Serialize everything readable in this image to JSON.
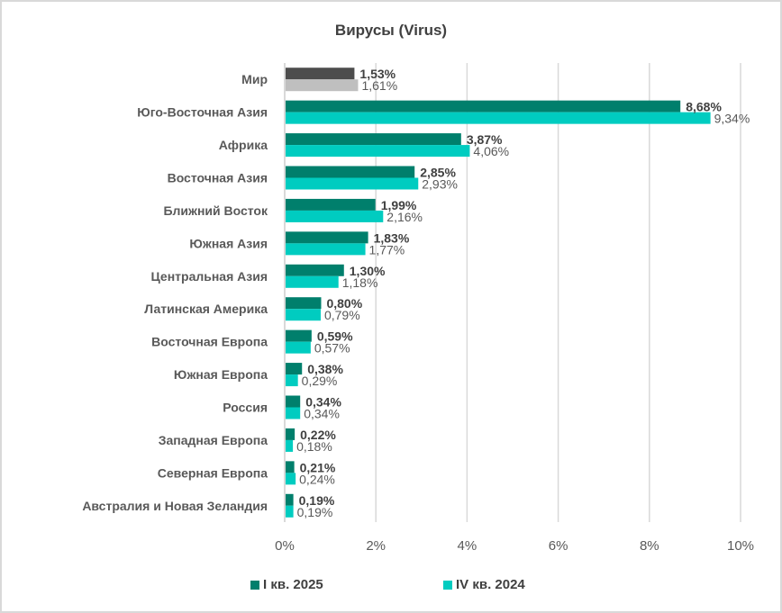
{
  "chart_data": {
    "type": "bar",
    "orientation": "horizontal",
    "title": "Вирусы (Virus)",
    "xlabel": "",
    "ylabel": "",
    "xlim": [
      0,
      10
    ],
    "x_ticks": [
      "0%",
      "2%",
      "4%",
      "6%",
      "8%",
      "10%"
    ],
    "x_tick_values": [
      0,
      2,
      4,
      6,
      8,
      10
    ],
    "grid": true,
    "legend_position": "bottom",
    "categories": [
      "Мир",
      "Юго-Восточная Азия",
      "Африка",
      "Восточная Азия",
      "Ближний Восток",
      "Южная Азия",
      "Центральная Азия",
      "Латинская Америка",
      "Восточная Европа",
      "Южная Европа",
      "Россия",
      "Западная Европа",
      "Северная Европа",
      "Австралия и Новая Зеландия"
    ],
    "series": [
      {
        "name": "I кв. 2025",
        "color": "#007F6C",
        "highlight_color_first_category": "#4D4D4D",
        "values": [
          1.53,
          8.68,
          3.87,
          2.85,
          1.99,
          1.83,
          1.3,
          0.8,
          0.59,
          0.38,
          0.34,
          0.22,
          0.21,
          0.19
        ],
        "labels": [
          "1,53%",
          "8,68%",
          "3,87%",
          "2,85%",
          "1,99%",
          "1,83%",
          "1,30%",
          "0,80%",
          "0,59%",
          "0,38%",
          "0,34%",
          "0,22%",
          "0,21%",
          "0,19%"
        ]
      },
      {
        "name": "IV кв. 2024",
        "color": "#00CCC0",
        "highlight_color_first_category": "#BFBFBF",
        "values": [
          1.61,
          9.34,
          4.06,
          2.93,
          2.16,
          1.77,
          1.18,
          0.79,
          0.57,
          0.29,
          0.34,
          0.18,
          0.24,
          0.19
        ],
        "labels": [
          "1,61%",
          "9,34%",
          "4,06%",
          "2,93%",
          "2,16%",
          "1,77%",
          "1,18%",
          "0,79%",
          "0,57%",
          "0,29%",
          "0,34%",
          "0,18%",
          "0,24%",
          "0,19%"
        ]
      }
    ]
  }
}
